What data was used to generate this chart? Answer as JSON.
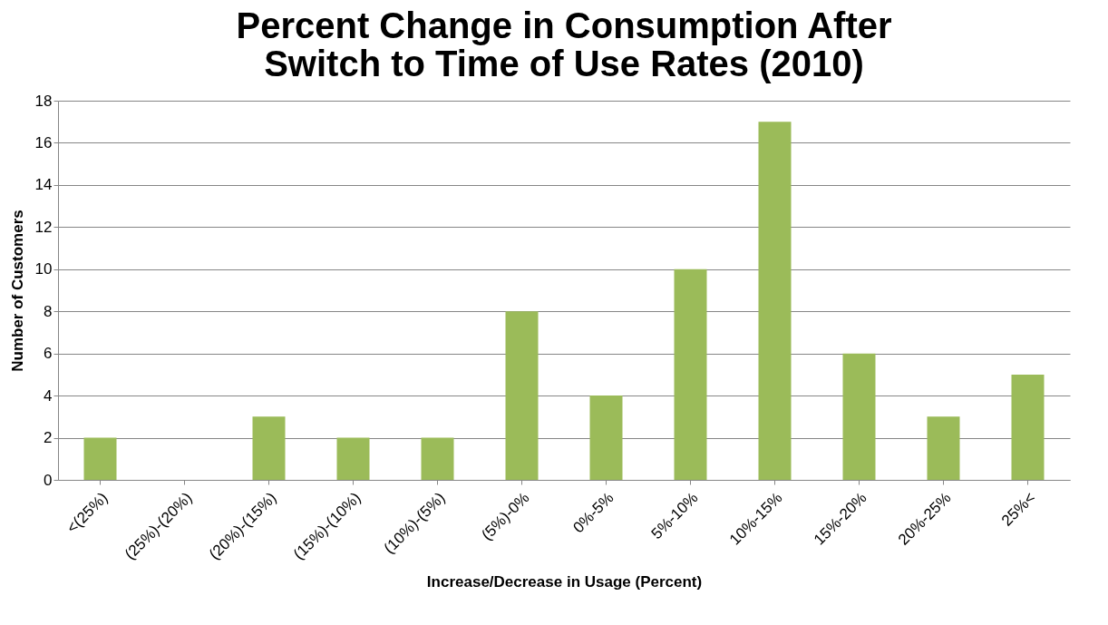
{
  "chart_data": {
    "type": "bar",
    "title": "Percent Change in Consumption After Switch to Time of Use Rates (2010)",
    "xlabel": "Increase/Decrease in Usage (Percent)",
    "ylabel": "Number of Customers",
    "categories": [
      "<(25%)",
      "(25%)-(20%)",
      "(20%)-(15%)",
      "(15%)-(10%)",
      "(10%)-(5%)",
      "(5%)-0%",
      "0%-5%",
      "5%-10%",
      "10%-15%",
      "15%-20%",
      "20%-25%",
      "25%<"
    ],
    "values": [
      2,
      0,
      3,
      2,
      2,
      8,
      4,
      10,
      17,
      6,
      3,
      5
    ],
    "color": "#9bbb59",
    "ylim": [
      0,
      18
    ],
    "yticks": [
      0,
      2,
      4,
      6,
      8,
      10,
      12,
      14,
      16,
      18
    ],
    "grid": "y"
  }
}
